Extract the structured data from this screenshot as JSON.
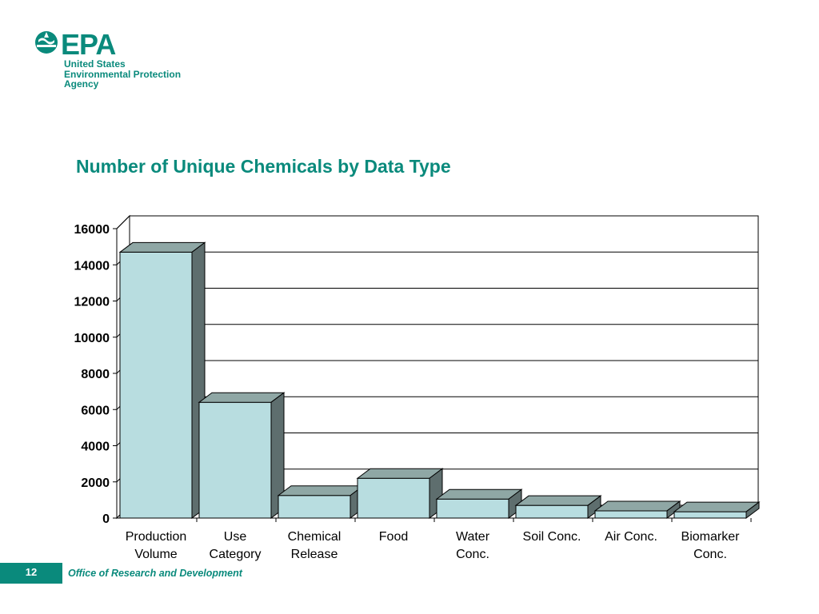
{
  "logo": {
    "wordmark": "EPA",
    "line1": "United States",
    "line2": "Environmental Protection",
    "line3": "Agency"
  },
  "footer": {
    "page_number": "12",
    "org": "Office of Research and Development"
  },
  "colors": {
    "brand": "#0a8a7c",
    "bar_front": "#b8dde0",
    "bar_top": "#8fa7a5",
    "bar_side": "#5e6e6e"
  },
  "chart_data": {
    "type": "bar",
    "title": "Number of Unique Chemicals by Data Type",
    "categories": [
      [
        "Production",
        "Volume"
      ],
      [
        "Use",
        "Category"
      ],
      [
        "Chemical",
        "Release"
      ],
      [
        "Food"
      ],
      [
        "Water",
        "Conc."
      ],
      [
        "Soil Conc."
      ],
      [
        "Air Conc."
      ],
      [
        "Biomarker",
        "Conc."
      ]
    ],
    "values": [
      14700,
      6400,
      1250,
      2200,
      1050,
      700,
      400,
      350
    ],
    "ylim": [
      0,
      16000
    ],
    "yticks": [
      "0",
      "2000",
      "4000",
      "6000",
      "8000",
      "10000",
      "12000",
      "14000",
      "16000"
    ],
    "grid": true,
    "legend": "none",
    "style": "3d-bar"
  }
}
